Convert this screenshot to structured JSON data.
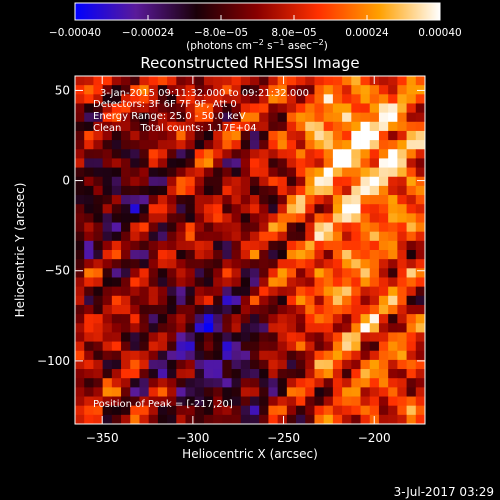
{
  "chart_data": {
    "type": "heatmap",
    "title": "Reconstructed RHESSI Image",
    "xlabel": "Heliocentric X (arcsec)",
    "ylabel": "Heliocentric Y (arcsec)",
    "xlim": [
      -365,
      -172
    ],
    "ylim": [
      -135,
      58
    ],
    "x_ticks": [
      -350,
      -300,
      -250,
      -200
    ],
    "x_tick_labels": [
      "−350",
      "−300",
      "−250",
      "−200"
    ],
    "y_ticks": [
      -100,
      -50,
      0,
      50
    ],
    "y_tick_labels": [
      "−100",
      "−50",
      "0",
      "50"
    ],
    "colorbar": {
      "range": [
        -0.0004,
        0.0004
      ],
      "ticks": [
        -0.0004,
        -0.00024,
        -8e-05,
        8e-05,
        0.00024,
        0.0004
      ],
      "tick_labels": [
        "−0.00040",
        "−0.00024",
        "−8.0e−05",
        "8.0e−05",
        "0.00024",
        "0.00040"
      ],
      "units_prefix": "(photons cm",
      "units_exp1": "−2",
      "units_mid1": " s",
      "units_exp2": "−1",
      "units_mid2": " asec",
      "units_exp3": "−2",
      "units_suffix": ")",
      "colors": [
        "#0000ff",
        "#5a1a9a",
        "#1a0008",
        "#8a0000",
        "#ff3000",
        "#ffa000",
        "#ffffff"
      ]
    },
    "peak_position": [
      -217,
      20
    ],
    "grid_size": 38,
    "annotations": {
      "time_range": "3-Jan-2015 09:11:32.000 to 09:21:32.000",
      "detectors": "Detectors: 3F 6F 7F 9F, Att 0",
      "energy_range": "Energy Range: 25.0 - 50.0 keV",
      "clean_total": "Clean      Total counts: 1.17E+04",
      "peak": "Position of Peak = [-217,20]"
    }
  },
  "footer": {
    "timestamp": "3-Jul-2017 03:29"
  }
}
